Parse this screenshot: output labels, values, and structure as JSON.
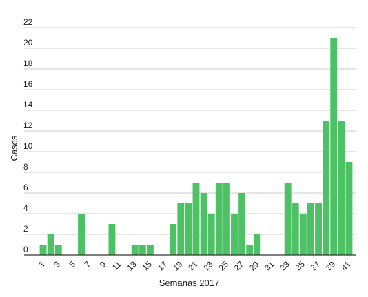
{
  "chart_data": {
    "type": "bar",
    "xlabel": "Semanas 2017",
    "ylabel": "Casos",
    "ylim": [
      0,
      22
    ],
    "yticks": [
      "0",
      "2",
      "4",
      "6",
      "8",
      "10",
      "12",
      "14",
      "16",
      "18",
      "20",
      "22"
    ],
    "categories": [
      1,
      2,
      3,
      4,
      5,
      6,
      7,
      8,
      9,
      10,
      11,
      12,
      13,
      14,
      15,
      16,
      17,
      18,
      19,
      20,
      21,
      22,
      23,
      24,
      25,
      26,
      27,
      28,
      29,
      30,
      31,
      32,
      33,
      34,
      35,
      36,
      37,
      38,
      39,
      40,
      41
    ],
    "xtick_labels": [
      "1",
      "3",
      "5",
      "7",
      "9",
      "11",
      "13",
      "15",
      "17",
      "19",
      "21",
      "23",
      "25",
      "27",
      "29",
      "31",
      "33",
      "35",
      "37",
      "39",
      "41"
    ],
    "values": [
      1,
      2,
      1,
      0,
      0,
      4,
      0,
      0,
      0,
      3,
      0,
      0,
      1,
      1,
      1,
      0,
      0,
      3,
      5,
      5,
      7,
      6,
      4,
      7,
      7,
      4,
      6,
      1,
      2,
      0,
      0,
      0,
      7,
      5,
      4,
      5,
      5,
      13,
      21,
      13,
      9
    ],
    "bar_color": "#4cc264",
    "grid": true,
    "legend": "none"
  }
}
